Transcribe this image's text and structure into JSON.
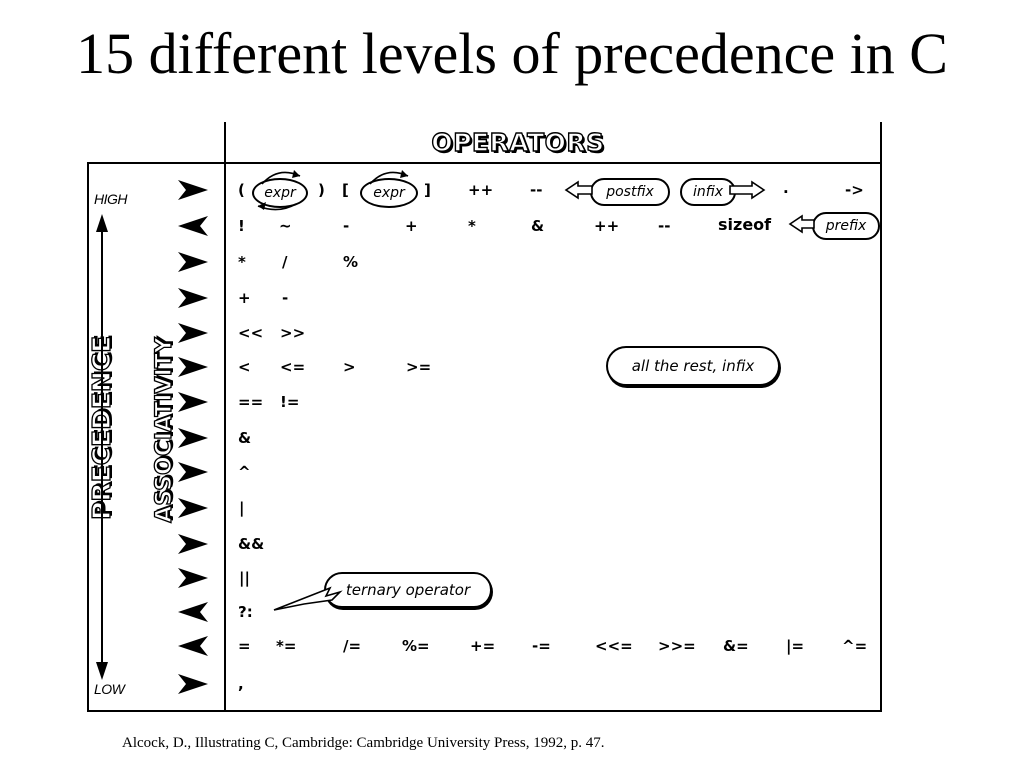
{
  "title": "15 different levels of precedence in C",
  "citation": "Alcock, D., Illustrating C, Cambridge: Cambridge University Press, 1992, p. 47.",
  "figure": {
    "operators_heading": "OPERATORS",
    "precedence_heading": "PRECEDENCE",
    "associativity_heading": "ASSOCIATIVITY",
    "high_label": "HIGH",
    "low_label": "LOW",
    "rows": [
      {
        "associativity": "right",
        "operators": [
          "(",
          "expr",
          ")",
          "[",
          "expr",
          "]",
          "++",
          "--",
          "postfix",
          "infix",
          ".",
          "->"
        ]
      },
      {
        "associativity": "left",
        "operators": [
          "!",
          "~",
          "-",
          "+",
          "*",
          "&",
          "++",
          "--",
          "sizeof",
          "prefix"
        ]
      },
      {
        "associativity": "right",
        "operators": [
          "*",
          "/",
          "%"
        ]
      },
      {
        "associativity": "right",
        "operators": [
          "+",
          "-"
        ]
      },
      {
        "associativity": "right",
        "operators": [
          "<<",
          ">>"
        ]
      },
      {
        "associativity": "right",
        "operators": [
          "<",
          "<=",
          ">",
          ">="
        ]
      },
      {
        "associativity": "right",
        "operators": [
          "==",
          "!="
        ]
      },
      {
        "associativity": "right",
        "operators": [
          "&"
        ]
      },
      {
        "associativity": "right",
        "operators": [
          "^"
        ]
      },
      {
        "associativity": "right",
        "operators": [
          "|"
        ]
      },
      {
        "associativity": "right",
        "operators": [
          "&&"
        ]
      },
      {
        "associativity": "right",
        "operators": [
          "||"
        ]
      },
      {
        "associativity": "left",
        "operators": [
          "?:"
        ]
      },
      {
        "associativity": "left",
        "operators": [
          "=",
          "*=",
          "/=",
          "%=",
          "+=",
          "-=",
          "<<=",
          ">>=",
          "&=",
          "|=",
          "^="
        ]
      },
      {
        "associativity": "right",
        "operators": [
          ","
        ]
      }
    ],
    "note_rest": "all the rest, infix",
    "note_ternary": "ternary operator",
    "note_postfix": "postfix",
    "note_infix": "infix",
    "note_prefix": "prefix",
    "expr_label": "expr"
  }
}
